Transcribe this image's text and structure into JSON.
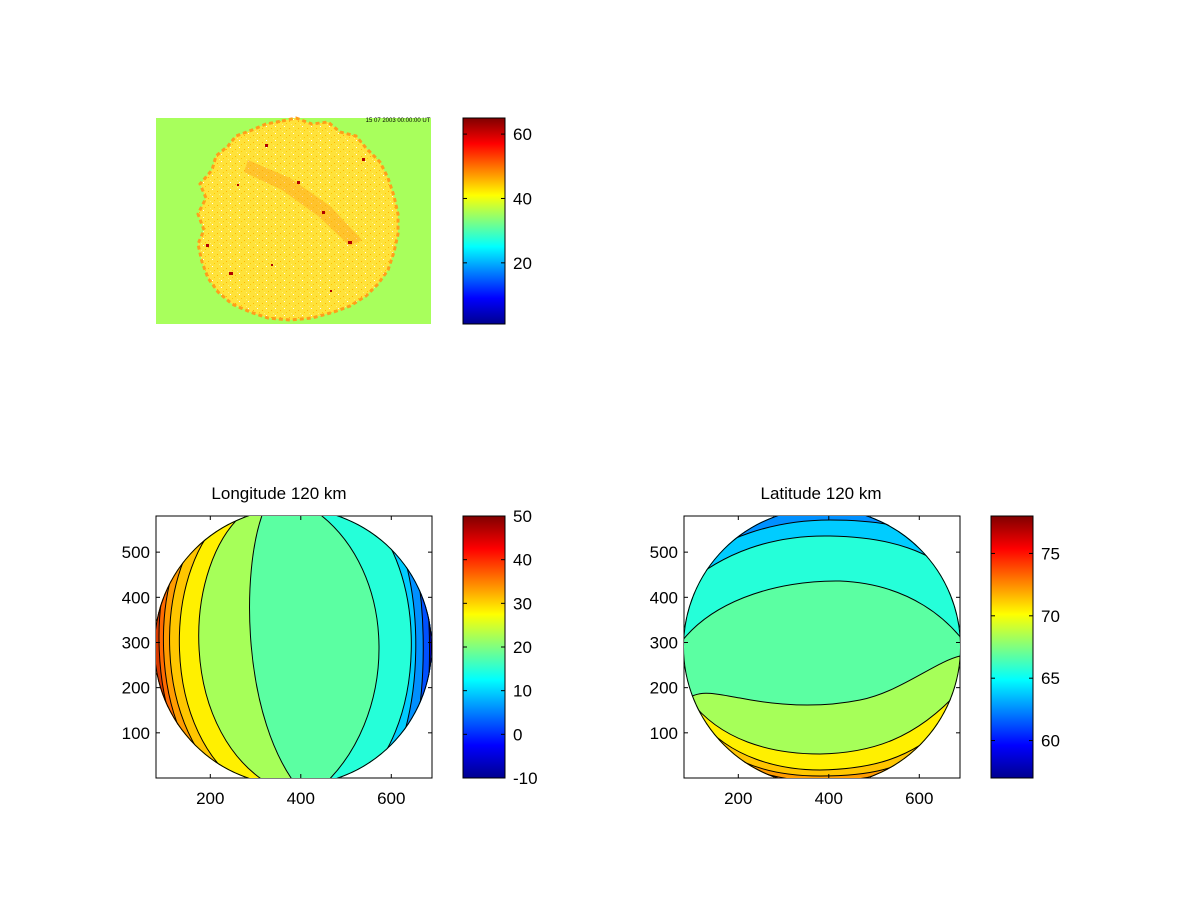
{
  "figure": {
    "panels": [
      {
        "id": "image",
        "title": ""
      },
      {
        "id": "longitude",
        "title": "Longitude 120 km"
      },
      {
        "id": "latitude",
        "title": "Latitude 120 km"
      }
    ]
  },
  "image_panel": {
    "background_value": 35,
    "disc_value": 45,
    "overlay_text": "15 07 2003 00:00:00 UT"
  },
  "chart_data": [
    {
      "type": "heatmap",
      "title": "",
      "xlabel": "",
      "ylabel": "",
      "description_values": {
        "background": 35,
        "disc_typical": 45,
        "stripe_peak": 50,
        "hot_pixels": 62
      },
      "axes_visible": false,
      "colorbar": {
        "min": 1,
        "max": 65,
        "ticks": [
          20,
          40,
          60
        ],
        "colormap": "jet"
      }
    },
    {
      "type": "heatmap",
      "title": "Longitude 120 km",
      "xlabel": "",
      "ylabel": "",
      "xlim": [
        80,
        690
      ],
      "ylim": [
        0,
        580
      ],
      "xticks": [
        200,
        400,
        600
      ],
      "yticks": [
        100,
        200,
        300,
        400,
        500
      ],
      "contour_bands": [
        {
          "value": 21,
          "label_color": "#5bffa2"
        },
        {
          "value": 25,
          "label_color": "#a6ff59"
        },
        {
          "value": 29,
          "label_color": "#fff000"
        },
        {
          "value": 33,
          "label_color": "#ffc600"
        },
        {
          "value": 36,
          "label_color": "#ff9c00"
        },
        {
          "value": 17,
          "label_color": "#25ffd9"
        },
        {
          "value": 13,
          "label_color": "#00ccff"
        },
        {
          "value": 9,
          "label_color": "#0090ff"
        },
        {
          "value": 5,
          "label_color": "#0050ff"
        }
      ],
      "colorbar": {
        "min": -10,
        "max": 50,
        "ticks": [
          50,
          40,
          30,
          20,
          10,
          0,
          -10
        ],
        "colormap": "jet"
      }
    },
    {
      "type": "heatmap",
      "title": "Latitude 120 km",
      "xlabel": "",
      "ylabel": "",
      "xlim": [
        80,
        690
      ],
      "ylim": [
        0,
        580
      ],
      "xticks": [
        200,
        400,
        600
      ],
      "yticks": [
        100,
        200,
        300,
        400,
        500
      ],
      "contour_bands": [
        {
          "value": 67,
          "label_color": "#5bffa2"
        },
        {
          "value": 65,
          "label_color": "#25ffd9"
        },
        {
          "value": 69,
          "label_color": "#a6ff59"
        },
        {
          "value": 70.5,
          "label_color": "#fff000"
        },
        {
          "value": 72,
          "label_color": "#ffc600"
        },
        {
          "value": 74,
          "label_color": "#ff9c00"
        },
        {
          "value": 63,
          "label_color": "#00ccff"
        },
        {
          "value": 61,
          "label_color": "#0090ff"
        }
      ],
      "colorbar": {
        "min": 57,
        "max": 78,
        "ticks": [
          75,
          70,
          65,
          60
        ],
        "colormap": "jet"
      }
    }
  ]
}
